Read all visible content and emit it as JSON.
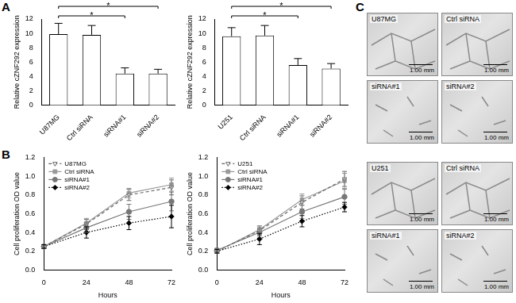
{
  "panel_labels": [
    "A",
    "B",
    "C"
  ],
  "chart_data": [
    {
      "type": "bar",
      "categories": [
        "U87MG",
        "Ctrl siRNA",
        "siRNA#1",
        "siRNA#2"
      ],
      "values": [
        9.9,
        9.8,
        4.4,
        4.4
      ],
      "errors": [
        1.5,
        1.3,
        0.8,
        0.6
      ],
      "color": "#ffffff",
      "ylabel": "Relative cZNF292 expression",
      "ylim": [
        0,
        12
      ],
      "yticks": [
        0,
        2,
        4,
        6,
        8,
        10,
        12
      ],
      "grid": false,
      "significance": [
        {
          "from": "U87MG",
          "to": "siRNA#2",
          "label": "*"
        },
        {
          "from": "U87MG",
          "to": "siRNA#1",
          "label": "*"
        }
      ]
    },
    {
      "type": "bar",
      "categories": [
        "U251",
        "Ctrl siRNA",
        "siRNA#1",
        "siRNA#2"
      ],
      "values": [
        9.6,
        9.7,
        5.6,
        5.1
      ],
      "errors": [
        1.2,
        1.4,
        0.9,
        0.7
      ],
      "color": "#ffffff",
      "ylabel": "Relative cZNF292 expression",
      "ylim": [
        0,
        12
      ],
      "yticks": [
        0,
        2,
        4,
        6,
        8,
        10,
        12
      ],
      "grid": false,
      "significance": [
        {
          "from": "U251",
          "to": "siRNA#2",
          "label": "*"
        },
        {
          "from": "U251",
          "to": "siRNA#1",
          "label": "*"
        }
      ]
    },
    {
      "type": "line",
      "x": [
        0,
        24,
        48,
        72
      ],
      "xlim": [
        0,
        72
      ],
      "xticks": [
        0,
        24,
        48,
        72
      ],
      "xlabel": "Hours",
      "ylabel": "Cell proliferation OD value",
      "ylim": [
        0,
        1.2
      ],
      "yticks": [
        {
          "value": 0,
          "label": "0.0"
        },
        0.2,
        0.4,
        0.6,
        0.8,
        {
          "value": 1,
          "label": "1.0"
        },
        1.2
      ],
      "grid": false,
      "legend": "top-left",
      "series": [
        {
          "name": "U87MG",
          "color": "#666666",
          "marker": "triangle-down-open",
          "line_style": "dashed",
          "values": [
            0.25,
            0.49,
            0.8,
            0.88
          ],
          "errors": [
            0.02,
            0.05,
            0.06,
            0.08
          ]
        },
        {
          "name": "Ctrl siRNA",
          "color": "#999999",
          "marker": "square",
          "line_style": "solid",
          "values": [
            0.25,
            0.5,
            0.82,
            0.91
          ],
          "errors": [
            0.02,
            0.05,
            0.05,
            0.07
          ]
        },
        {
          "name": "siRNA#1",
          "color": "#777777",
          "marker": "circle",
          "line_style": "solid",
          "values": [
            0.25,
            0.45,
            0.62,
            0.73
          ],
          "errors": [
            0.02,
            0.05,
            0.08,
            0.1
          ]
        },
        {
          "name": "siRNA#2",
          "color": "#000000",
          "marker": "diamond",
          "line_style": "dotted",
          "values": [
            0.25,
            0.4,
            0.5,
            0.57
          ],
          "errors": [
            0.02,
            0.06,
            0.07,
            0.12
          ]
        }
      ]
    },
    {
      "type": "line",
      "x": [
        0,
        24,
        48,
        72
      ],
      "xlim": [
        0,
        72
      ],
      "xticks": [
        0,
        24,
        48,
        72
      ],
      "xlabel": "Hours",
      "ylabel": "Cell proliferation OD value",
      "ylim": [
        0,
        1.2
      ],
      "yticks": [
        {
          "value": 0,
          "label": "0.0"
        },
        0.2,
        0.4,
        0.6,
        0.8,
        {
          "value": 1,
          "label": "1.0"
        },
        1.2
      ],
      "grid": false,
      "legend": "top-left",
      "series": [
        {
          "name": "U251",
          "color": "#666666",
          "marker": "triangle-down-open",
          "line_style": "dashed",
          "values": [
            0.2,
            0.42,
            0.72,
            0.97
          ],
          "errors": [
            0.02,
            0.05,
            0.07,
            0.08
          ]
        },
        {
          "name": "Ctrl siRNA",
          "color": "#999999",
          "marker": "square",
          "line_style": "solid",
          "values": [
            0.2,
            0.43,
            0.75,
            0.95
          ],
          "errors": [
            0.02,
            0.04,
            0.06,
            0.08
          ]
        },
        {
          "name": "siRNA#1",
          "color": "#777777",
          "marker": "circle",
          "line_style": "solid",
          "values": [
            0.21,
            0.4,
            0.62,
            0.78
          ],
          "errors": [
            0.02,
            0.05,
            0.07,
            0.08
          ]
        },
        {
          "name": "siRNA#2",
          "color": "#000000",
          "marker": "diamond",
          "line_style": "dotted",
          "values": [
            0.2,
            0.33,
            0.52,
            0.67
          ],
          "errors": [
            0.02,
            0.06,
            0.06,
            0.05
          ]
        }
      ]
    }
  ],
  "images": [
    {
      "panels": [
        {
          "label": "U87MG",
          "scale_bar": "1.00 mm"
        },
        {
          "label": "Ctrl siRNA",
          "scale_bar": "1.00 mm"
        },
        {
          "label": "siRNA#1",
          "scale_bar": "1.00 mm"
        },
        {
          "label": "siRNA#2",
          "scale_bar": "1.00 mm"
        }
      ]
    },
    {
      "panels": [
        {
          "label": "U251",
          "scale_bar": "1.00 mm"
        },
        {
          "label": "Ctrl siRNA",
          "scale_bar": "1.00 mm"
        },
        {
          "label": "siRNA#1",
          "scale_bar": "1.00 mm"
        },
        {
          "label": "siRNA#2",
          "scale_bar": "1.00 mm"
        }
      ]
    }
  ]
}
